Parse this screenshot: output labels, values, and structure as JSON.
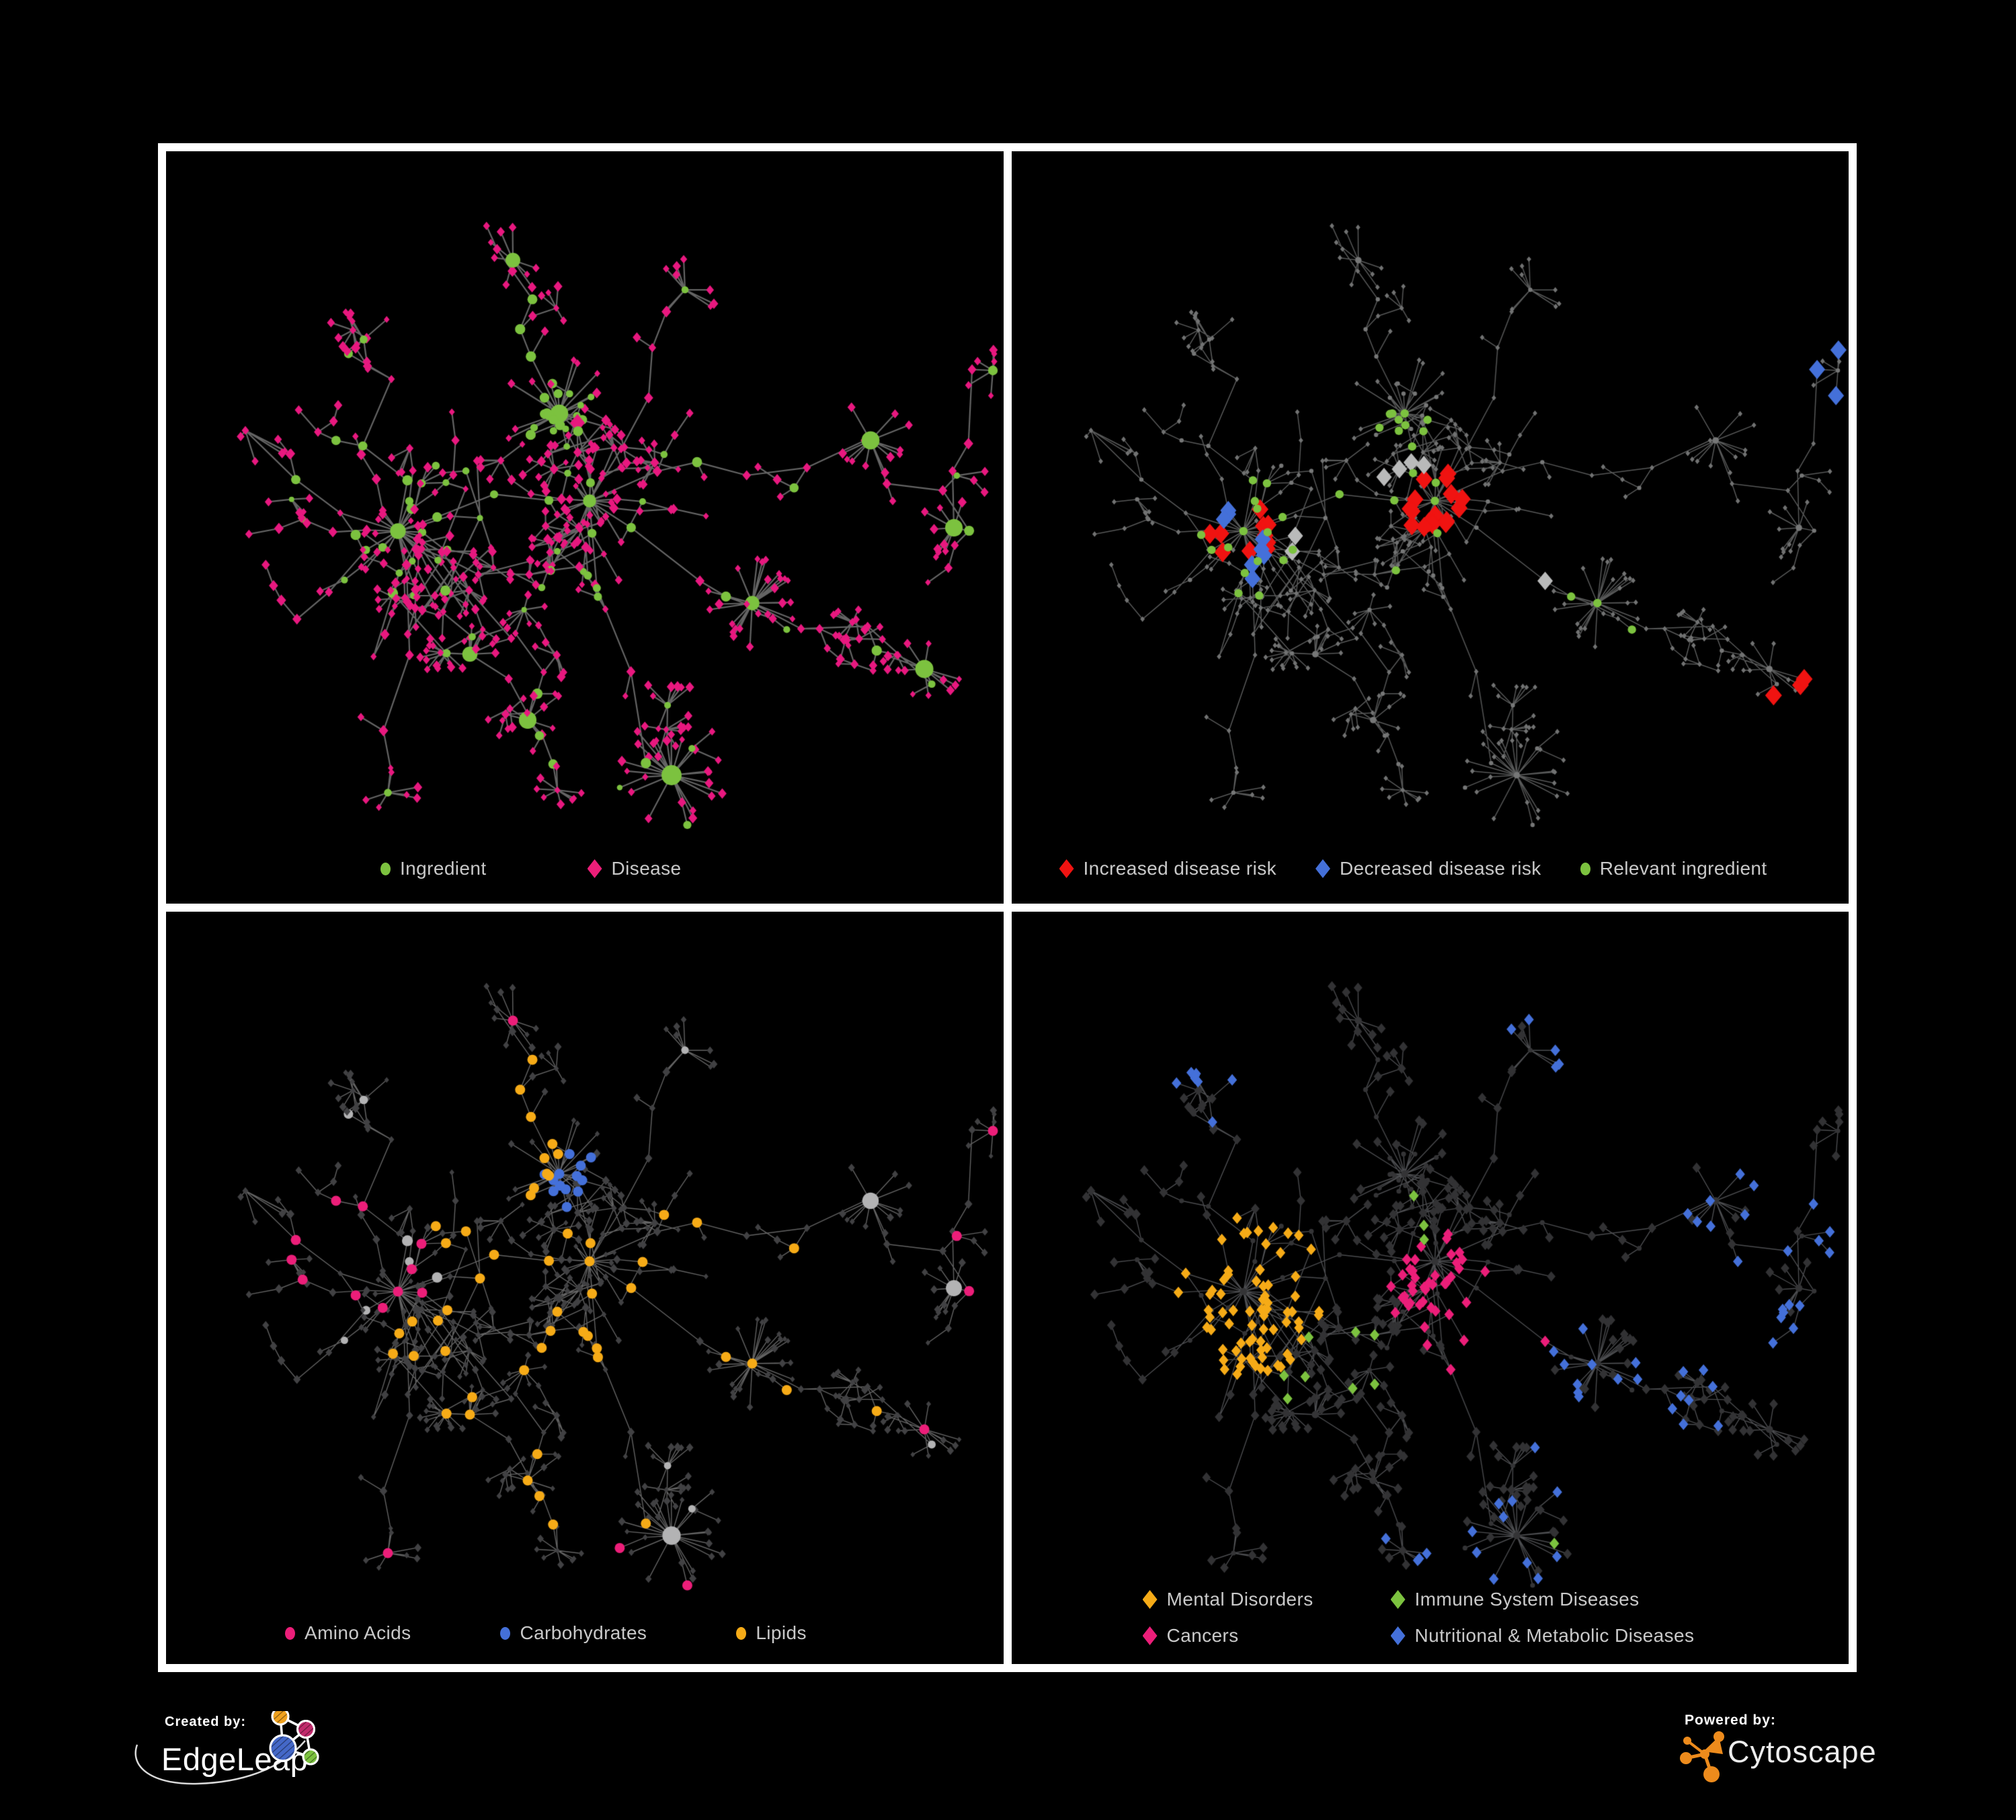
{
  "panels": [
    {
      "id": "ingredient-disease",
      "legend": [
        {
          "label": "Ingredient",
          "shape": "circle",
          "color": "#7cc23f"
        },
        {
          "label": "Disease",
          "shape": "diamond",
          "color": "#ec1e79"
        }
      ]
    },
    {
      "id": "disease-risk",
      "legend": [
        {
          "label": "Increased disease risk",
          "shape": "diamond",
          "color": "#f01311"
        },
        {
          "label": "Decreased disease risk",
          "shape": "diamond",
          "color": "#4470d9"
        },
        {
          "label": "Relevant ingredient",
          "shape": "circle",
          "color": "#7cc23f"
        }
      ]
    },
    {
      "id": "macronutrient-classes",
      "legend": [
        {
          "label": "Amino Acids",
          "shape": "circle",
          "color": "#ec1e79"
        },
        {
          "label": "Carbohydrates",
          "shape": "circle",
          "color": "#4470d9"
        },
        {
          "label": "Lipids",
          "shape": "circle",
          "color": "#f6ab17"
        }
      ]
    },
    {
      "id": "disease-classes",
      "legend": [
        {
          "label": "Mental Disorders",
          "shape": "diamond",
          "color": "#f6ab17"
        },
        {
          "label": "Immune System Diseases",
          "shape": "diamond",
          "color": "#7cc23f"
        },
        {
          "label": "Cancers",
          "shape": "diamond",
          "color": "#ec1e79"
        },
        {
          "label": "Nutritional & Metabolic Diseases",
          "shape": "diamond",
          "color": "#4470d9"
        }
      ]
    }
  ],
  "footer": {
    "created_by": "Created by:",
    "created_by_name": "EdgeLeap",
    "powered_by": "Powered by:",
    "powered_by_name": "Cytoscape"
  },
  "network": {
    "seed": 77,
    "node_types": {
      "ingredient": "circle",
      "disease": "diamond"
    },
    "panel_styles": [
      {
        "mode": "full",
        "edge": "#696969",
        "edgeWidth": 2.2,
        "edgeAlpha": 0.95,
        "ingredient": {
          "shape": "circle",
          "color": "#7cc23f",
          "sizes": {
            "hub": 11.5,
            "mid": 6.0,
            "leaf": 4.8
          }
        },
        "disease": {
          "shape": "diamond",
          "color": "#e8187f",
          "sizes": {
            "hub": 10.0,
            "mid": 5.6,
            "leaf": 5.2
          }
        },
        "highlights": []
      },
      {
        "mode": "plain",
        "edge": "#5c5d5d",
        "edgeWidth": 1.5,
        "edgeAlpha": 0.95,
        "base": {
          "i": {
            "shape": "circle",
            "color": "#767777",
            "r": 3.2
          },
          "d": {
            "shape": "diamond",
            "color": "#717272",
            "r": 3.4
          }
        },
        "highlights": [
          {
            "name": "increased-risk",
            "color": "#f01311",
            "shape": "diamond",
            "type": "d",
            "count": 30,
            "r": 12.5,
            "foci": [
              [
                630,
                520
              ],
              [
                345,
                565
              ],
              [
                1180,
                820
              ]
            ],
            "spread": 170,
            "jitter": 0.25
          },
          {
            "name": "decreased-risk",
            "color": "#4470d9",
            "shape": "diamond",
            "type": "d",
            "count": 11,
            "r": 12.0,
            "foci": [
              [
                360,
                600
              ],
              [
                330,
                520
              ],
              [
                1225,
                330
              ]
            ],
            "spread": 120,
            "jitter": 0.2
          },
          {
            "name": "unchanged-risk",
            "color": "#b9baba",
            "shape": "diamond",
            "type": "d",
            "count": 7,
            "r": 11.5,
            "foci": [
              [
                430,
                560
              ],
              [
                760,
                660
              ],
              [
                600,
                480
              ]
            ],
            "spread": 150,
            "jitter": 0.3
          },
          {
            "name": "relevant-ingredient",
            "color": "#7cc23f",
            "shape": "circle",
            "type": "i",
            "count": 36,
            "r": 6.2,
            "foci": [
              [
                560,
                500
              ],
              [
                345,
                565
              ],
              [
                880,
                680
              ],
              [
                1100,
                930
              ]
            ],
            "spread": 240,
            "jitter": 0.3
          }
        ]
      },
      {
        "mode": "full",
        "edge": "#8d8d8d",
        "edgeWidth": 1.4,
        "edgeAlpha": 0.7,
        "ingredient": {
          "shape": "circle",
          "color": "#b3b3b4",
          "sizes": {
            "hub": 10.5,
            "mid": 6.4,
            "leaf": 5.2
          }
        },
        "disease": {
          "shape": "diamond",
          "color": "#414143",
          "sizes": {
            "hub": 7.0,
            "mid": 4.6,
            "leaf": 4.3
          }
        },
        "highlights": [
          {
            "name": "carbohydrates",
            "color": "#4470d9",
            "shape": "circle",
            "type": "i",
            "count": 13,
            "r": 7.5,
            "foci": [
              [
                612,
                415
              ]
            ],
            "spread": 110,
            "jitter": 0.25
          },
          {
            "name": "lipids",
            "color": "#f6ab17",
            "shape": "circle",
            "type": "i",
            "count": 52,
            "r": 7.5,
            "foci": [
              [
                600,
                390
              ],
              [
                640,
                520
              ],
              [
                880,
                670
              ],
              [
                520,
                760
              ]
            ],
            "spread": 170,
            "jitter": 0.3
          },
          {
            "name": "amino-acids",
            "color": "#ec1e79",
            "shape": "circle",
            "type": "i",
            "count": 19,
            "r": 7.5,
            "foci": [
              [
                300,
                330
              ],
              [
                200,
                620
              ],
              [
                540,
                860
              ],
              [
                900,
                480
              ],
              [
                1150,
                330
              ],
              [
                620,
                640
              ]
            ],
            "spread": 420,
            "jitter": 0.9
          }
        ]
      },
      {
        "mode": "plain",
        "edge": "#4f5053",
        "edgeWidth": 1.4,
        "edgeAlpha": 0.95,
        "base": {
          "i": {
            "shape": "circle",
            "color": "#343436",
            "r": 3.6
          },
          "d": {
            "shape": "diamond",
            "color": "#323234",
            "r": 6.4
          }
        },
        "highlights": [
          {
            "name": "mental-disorders",
            "color": "#f6ab17",
            "shape": "diamond",
            "type": "d",
            "count": 74,
            "r": 7.2,
            "foci": [
              [
                345,
                565
              ]
            ],
            "spread": 135,
            "jitter": 0.15
          },
          {
            "name": "cancers",
            "color": "#ec1e79",
            "shape": "diamond",
            "type": "d",
            "count": 46,
            "r": 7.2,
            "foci": [
              [
                640,
                560
              ],
              [
                720,
                660
              ]
            ],
            "spread": 150,
            "jitter": 0.2
          },
          {
            "name": "nutritional-metabolic",
            "color": "#4470d9",
            "shape": "diamond",
            "type": "d",
            "count": 66,
            "r": 7.2,
            "foci": [
              [
                900,
                760
              ],
              [
                1120,
                420
              ],
              [
                360,
                210
              ],
              [
                1240,
                640
              ],
              [
                860,
                140
              ],
              [
                680,
                980
              ]
            ],
            "spread": 300,
            "jitter": 0.45
          },
          {
            "name": "immune-system",
            "color": "#7cc23f",
            "shape": "diamond",
            "type": "d",
            "count": 12,
            "r": 7.2,
            "foci": [
              [
                600,
                490
              ],
              [
                820,
                950
              ],
              [
                480,
                700
              ]
            ],
            "spread": 420,
            "jitter": 0.8
          }
        ]
      }
    ]
  }
}
